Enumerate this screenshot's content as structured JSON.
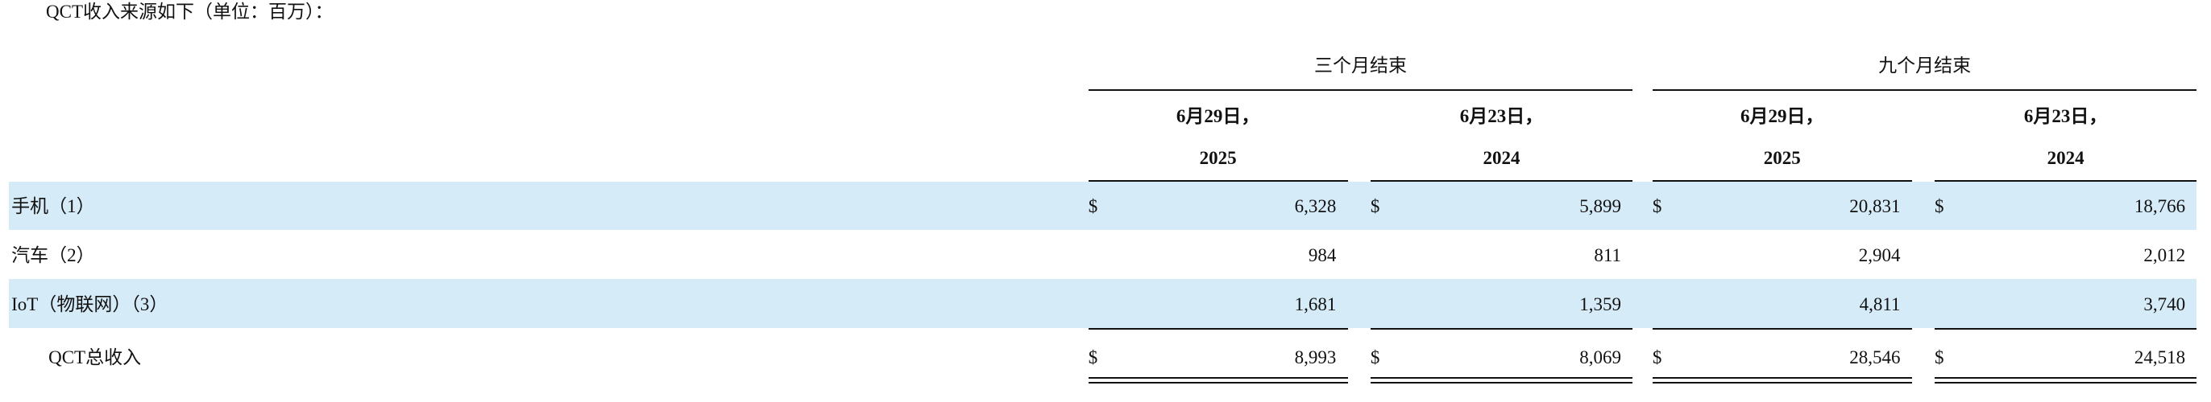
{
  "title": "QCT收入来源如下（单位：百万）：",
  "table": {
    "groups": [
      "三个月结束",
      "九个月结束"
    ],
    "columns": [
      {
        "date": "6月29日，",
        "year": "2025"
      },
      {
        "date": "6月23日，",
        "year": "2024"
      },
      {
        "date": "6月29日，",
        "year": "2025"
      },
      {
        "date": "6月23日，",
        "year": "2024"
      }
    ],
    "currency": "$",
    "rows": [
      {
        "label": "手机（1）",
        "values": [
          "6,328",
          "5,899",
          "20,831",
          "18,766"
        ]
      },
      {
        "label": "汽车（2）",
        "values": [
          "984",
          "811",
          "2,904",
          "2,012"
        ]
      },
      {
        "label": "IoT（物联网）（3）",
        "values": [
          "1,681",
          "1,359",
          "4,811",
          "3,740"
        ]
      }
    ],
    "total": {
      "label": "QCT总收入",
      "values": [
        "8,993",
        "8,069",
        "28,546",
        "24,518"
      ]
    }
  }
}
